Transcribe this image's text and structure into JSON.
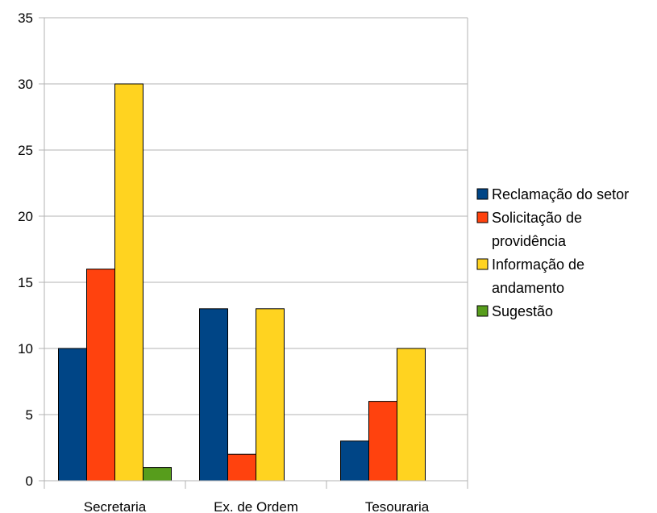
{
  "chart_data": {
    "type": "bar",
    "categories": [
      "Secretaria",
      "Ex. de Ordem",
      "Tesouraria"
    ],
    "series": [
      {
        "name": "Reclamação do setor",
        "values": [
          10,
          13,
          3
        ],
        "color": "#004586",
        "legend_lines": [
          "Reclamação do setor"
        ]
      },
      {
        "name": "Solicitação de providência",
        "values": [
          16,
          2,
          6
        ],
        "color": "#ff420e",
        "legend_lines": [
          "Solicitação de",
          "providência"
        ]
      },
      {
        "name": "Informação de andamento",
        "values": [
          30,
          13,
          10
        ],
        "color": "#ffd320",
        "legend_lines": [
          "Informação de",
          "andamento"
        ]
      },
      {
        "name": "Sugestão",
        "values": [
          1,
          0,
          0
        ],
        "color": "#579d1c",
        "legend_lines": [
          "Sugestão"
        ]
      }
    ],
    "ylim": [
      0,
      35
    ],
    "yticks": [
      0,
      5,
      10,
      15,
      20,
      25,
      30,
      35
    ],
    "grid": true,
    "legend": "right",
    "title": "",
    "xlabel": "",
    "ylabel": ""
  }
}
